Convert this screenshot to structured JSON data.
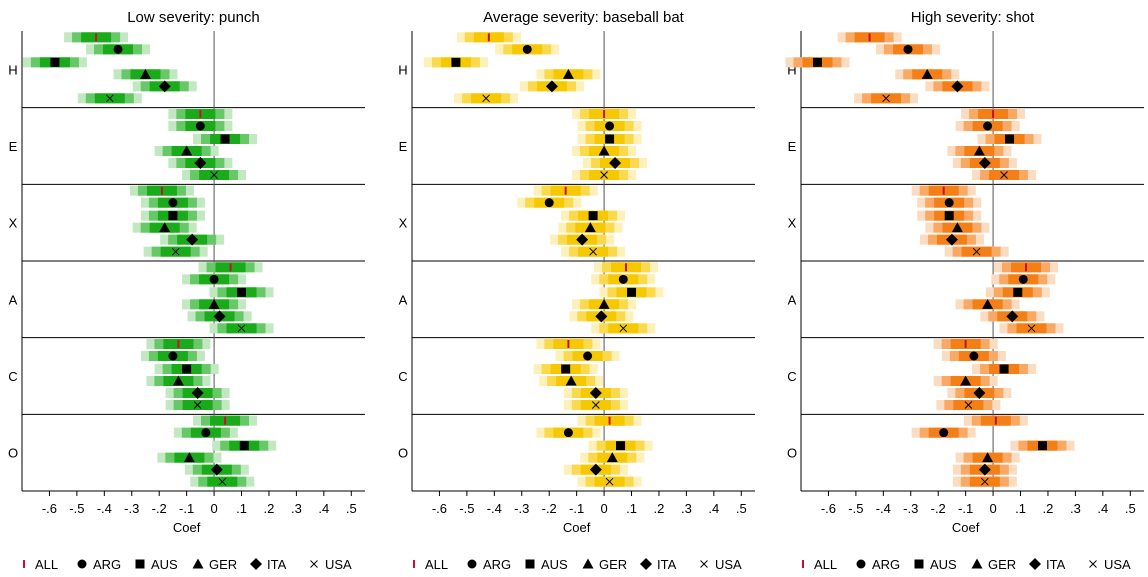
{
  "chart_data": [
    {
      "type": "scatter",
      "title": "Low severity: punch",
      "xlabel": "Coef",
      "xlim": [
        -0.7,
        0.55
      ],
      "xticks": [
        -0.6,
        -0.5,
        -0.4,
        -0.3,
        -0.2,
        -0.1,
        0,
        0.1,
        0.2,
        0.3,
        0.4,
        0.5
      ],
      "xtick_labels": [
        "-.6",
        "-.5",
        "-.4",
        "-.3",
        "-.2",
        "-.1",
        "0",
        ".1",
        ".2",
        ".3",
        ".4",
        ".5"
      ],
      "row_labels": [
        "H",
        "E",
        "X",
        "A",
        "C",
        "O"
      ],
      "series_names": [
        "ALL",
        "ARG",
        "AUS",
        "GER",
        "ITA",
        "USA"
      ],
      "colors": {
        "dark": "#1aab1a",
        "mid": "#66c866",
        "light": "#c2e8c2"
      },
      "rows": [
        {
          "label": "H",
          "values": [
            -0.43,
            -0.35,
            -0.58,
            -0.25,
            -0.18,
            -0.38
          ]
        },
        {
          "label": "E",
          "values": [
            -0.05,
            -0.05,
            0.04,
            -0.1,
            -0.05,
            0.0
          ]
        },
        {
          "label": "X",
          "values": [
            -0.19,
            -0.15,
            -0.15,
            -0.18,
            -0.08,
            -0.14
          ]
        },
        {
          "label": "A",
          "values": [
            0.06,
            0.0,
            0.1,
            0.0,
            0.02,
            0.1
          ]
        },
        {
          "label": "C",
          "values": [
            -0.13,
            -0.15,
            -0.1,
            -0.13,
            -0.06,
            -0.06
          ]
        },
        {
          "label": "O",
          "values": [
            0.04,
            -0.03,
            0.11,
            -0.09,
            0.01,
            0.03
          ]
        }
      ]
    },
    {
      "type": "scatter",
      "title": "Average severity: baseball bat",
      "xlabel": "Coef",
      "xlim": [
        -0.7,
        0.55
      ],
      "xticks": [
        -0.6,
        -0.5,
        -0.4,
        -0.3,
        -0.2,
        -0.1,
        0,
        0.1,
        0.2,
        0.3,
        0.4,
        0.5
      ],
      "xtick_labels": [
        "-.6",
        "-.5",
        "-.4",
        "-.3",
        "-.2",
        "-.1",
        "0",
        ".1",
        ".2",
        ".3",
        ".4",
        ".5"
      ],
      "row_labels": [
        "H",
        "E",
        "X",
        "A",
        "C",
        "O"
      ],
      "series_names": [
        "ALL",
        "ARG",
        "AUS",
        "GER",
        "ITA",
        "USA"
      ],
      "colors": {
        "dark": "#f5c800",
        "mid": "#fad94d",
        "light": "#fdf0b8"
      },
      "rows": [
        {
          "label": "H",
          "values": [
            -0.42,
            -0.28,
            -0.54,
            -0.13,
            -0.19,
            -0.43
          ]
        },
        {
          "label": "E",
          "values": [
            0.0,
            0.02,
            0.02,
            0.0,
            0.04,
            0.0
          ]
        },
        {
          "label": "X",
          "values": [
            -0.14,
            -0.2,
            -0.04,
            -0.05,
            -0.08,
            -0.04
          ]
        },
        {
          "label": "A",
          "values": [
            0.08,
            0.07,
            0.1,
            0.0,
            -0.01,
            0.07
          ]
        },
        {
          "label": "C",
          "values": [
            -0.13,
            -0.06,
            -0.14,
            -0.12,
            -0.03,
            -0.03
          ]
        },
        {
          "label": "O",
          "values": [
            0.02,
            -0.13,
            0.06,
            0.03,
            -0.03,
            0.02
          ]
        }
      ]
    },
    {
      "type": "scatter",
      "title": "High severity: shot",
      "xlabel": "Coef",
      "xlim": [
        -0.7,
        0.55
      ],
      "xticks": [
        -0.6,
        -0.5,
        -0.4,
        -0.3,
        -0.2,
        -0.1,
        0,
        0.1,
        0.2,
        0.3,
        0.4,
        0.5
      ],
      "xtick_labels": [
        "-.6",
        "-.5",
        "-.4",
        "-.3",
        "-.2",
        "-.1",
        "0",
        ".1",
        ".2",
        ".3",
        ".4",
        ".5"
      ],
      "row_labels": [
        "H",
        "E",
        "X",
        "A",
        "C",
        "O"
      ],
      "series_names": [
        "ALL",
        "ARG",
        "AUS",
        "GER",
        "ITA",
        "USA"
      ],
      "colors": {
        "dark": "#f57f17",
        "mid": "#f9a963",
        "light": "#fcdcc0"
      },
      "rows": [
        {
          "label": "H",
          "values": [
            -0.45,
            -0.31,
            -0.64,
            -0.24,
            -0.13,
            -0.39
          ]
        },
        {
          "label": "E",
          "values": [
            0.0,
            -0.02,
            0.06,
            -0.05,
            -0.03,
            0.04
          ]
        },
        {
          "label": "X",
          "values": [
            -0.18,
            -0.16,
            -0.16,
            -0.13,
            -0.15,
            -0.06
          ]
        },
        {
          "label": "A",
          "values": [
            0.12,
            0.11,
            0.09,
            -0.02,
            0.07,
            0.14
          ]
        },
        {
          "label": "C",
          "values": [
            -0.1,
            -0.07,
            0.04,
            -0.1,
            -0.05,
            -0.09
          ]
        },
        {
          "label": "O",
          "values": [
            0.01,
            -0.18,
            0.18,
            -0.02,
            -0.03,
            -0.03
          ]
        }
      ]
    }
  ]
}
